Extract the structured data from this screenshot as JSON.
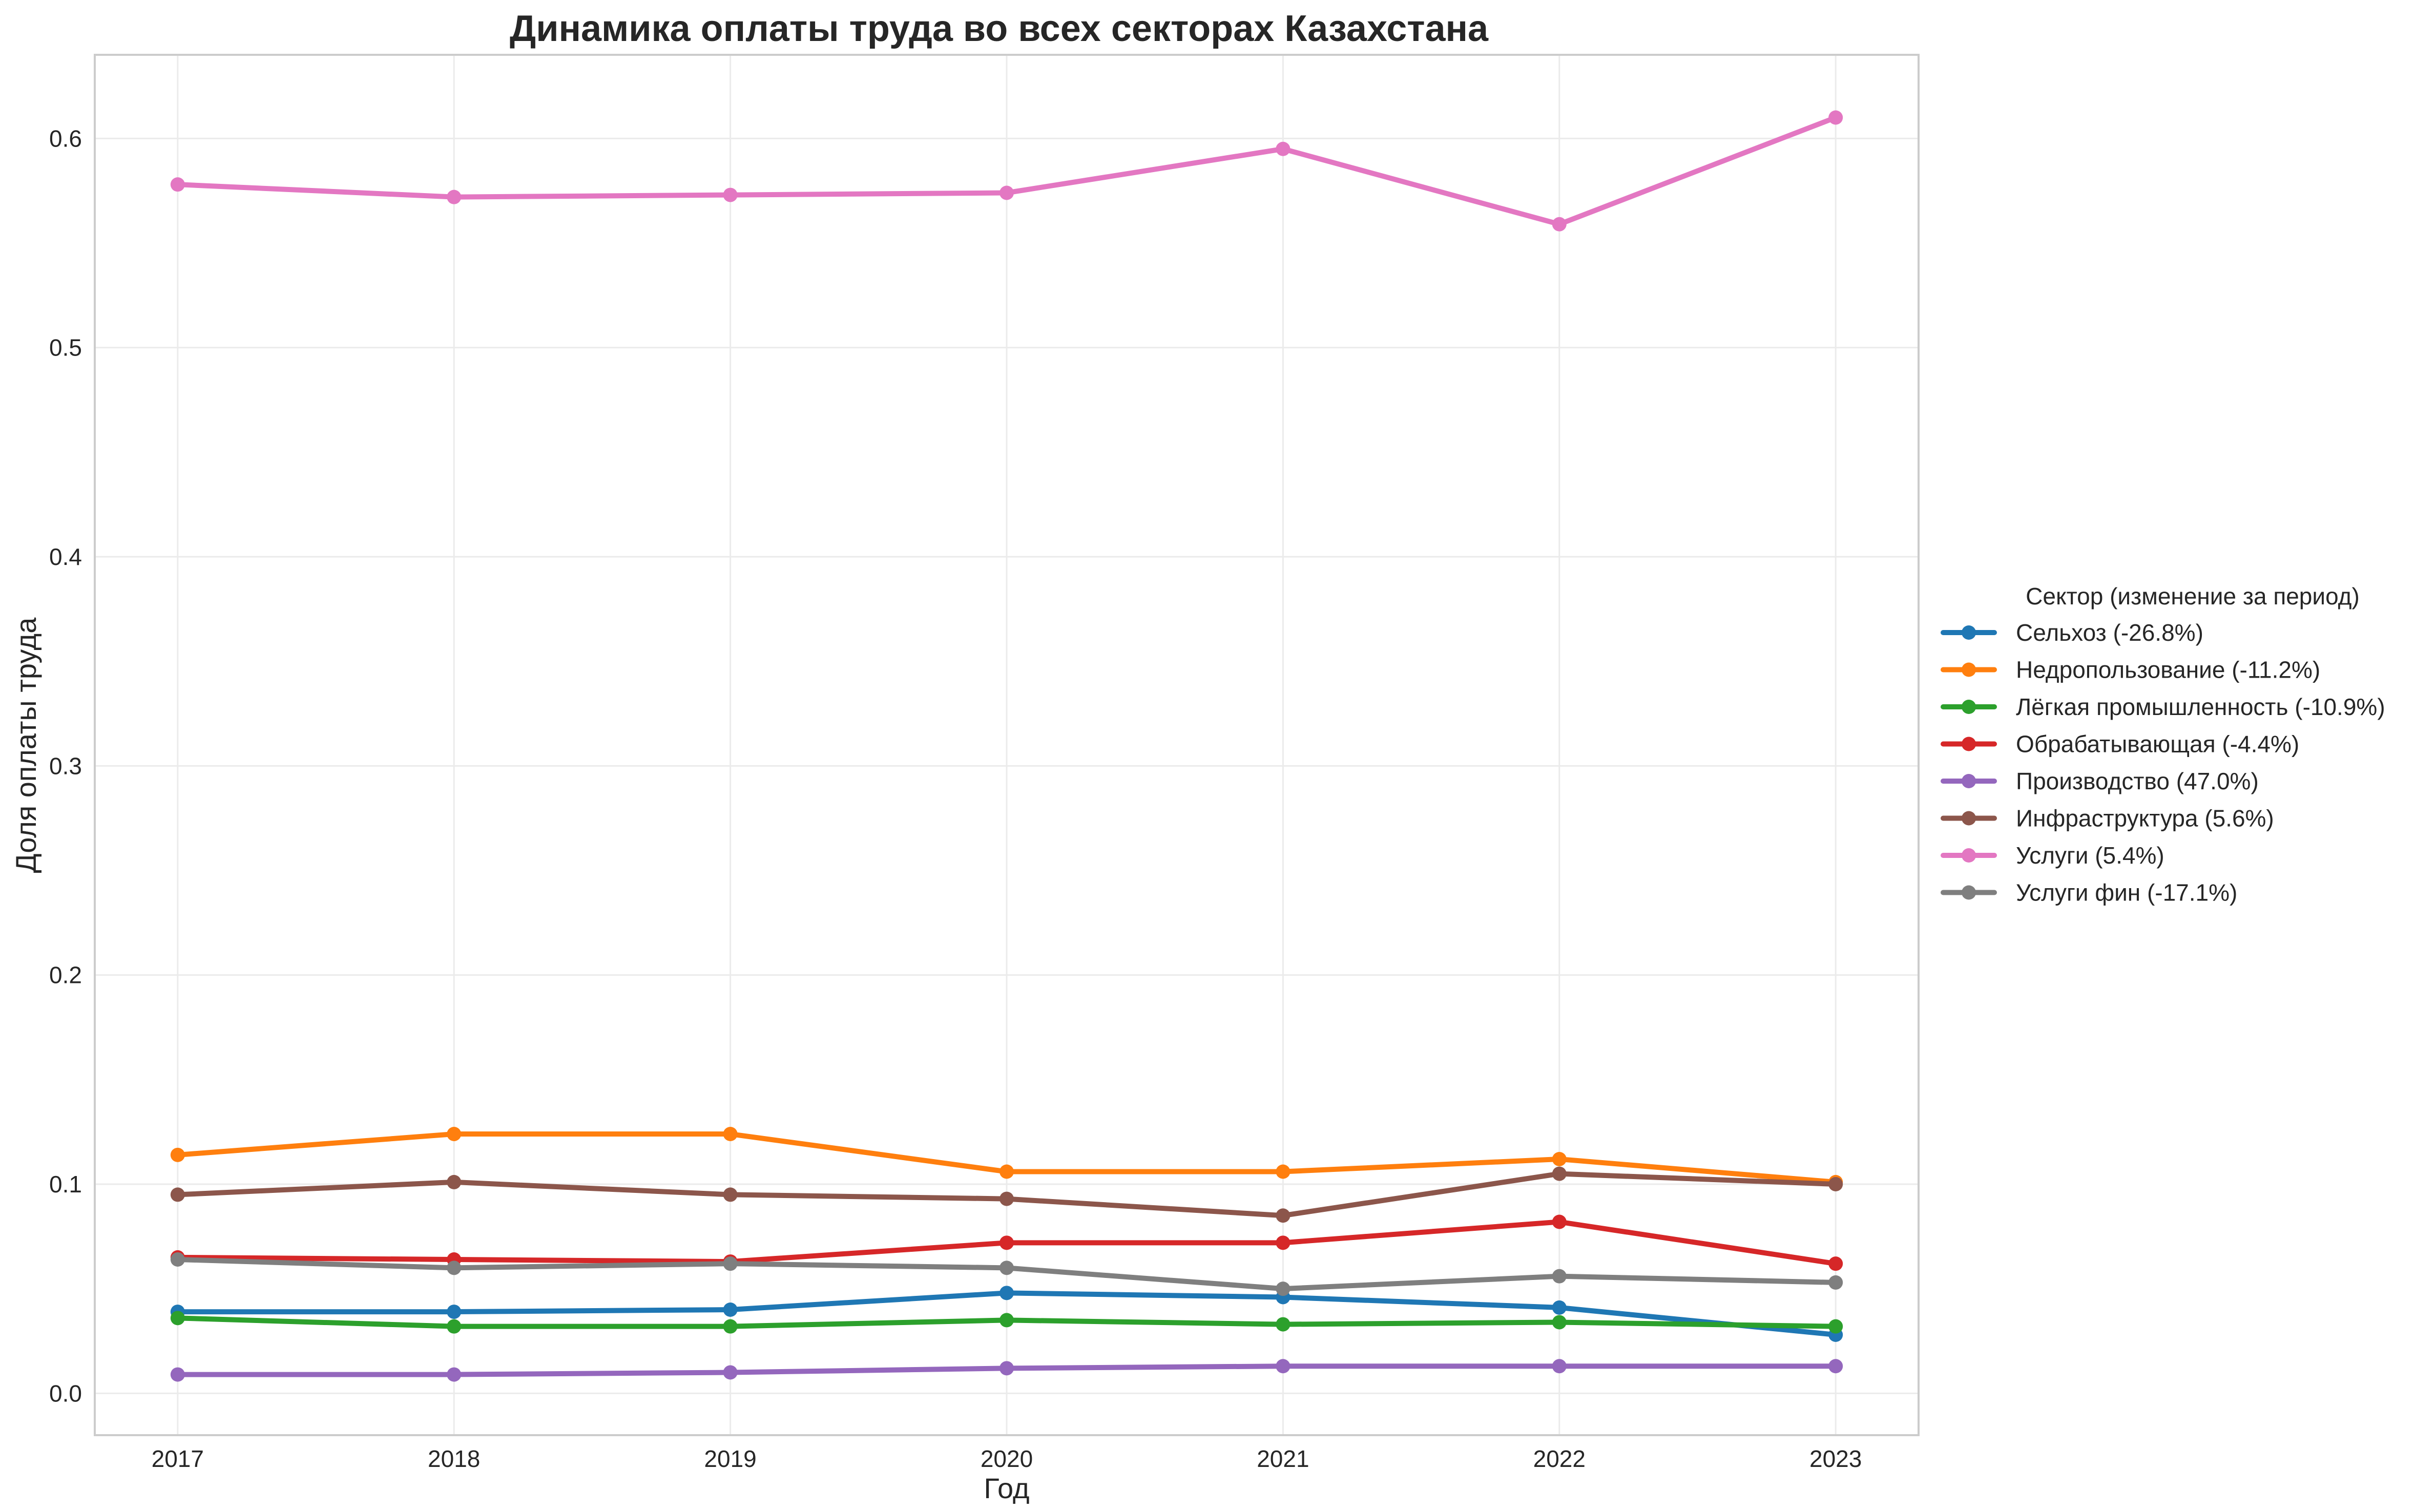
{
  "chart_data": {
    "type": "line",
    "title": "Динамика оплаты труда во всех секторах Казахстана",
    "xlabel": "Год",
    "ylabel": "Доля оплаты труда",
    "x": [
      2017,
      2018,
      2019,
      2020,
      2021,
      2022,
      2023
    ],
    "x_ticks": [
      "2017",
      "2018",
      "2019",
      "2020",
      "2021",
      "2022",
      "2023"
    ],
    "y_ticks": [
      "0.0",
      "0.1",
      "0.2",
      "0.3",
      "0.4",
      "0.5",
      "0.6"
    ],
    "xlim": [
      2016.7,
      2023.3
    ],
    "ylim": [
      -0.02,
      0.64
    ],
    "grid": true,
    "legend_title": "Сектор (изменение за период)",
    "legend_position": "right",
    "series": [
      {
        "name": "Сельхоз (-26.8%)",
        "color": "#1f77b4",
        "values": [
          0.039,
          0.039,
          0.04,
          0.048,
          0.046,
          0.041,
          0.028
        ]
      },
      {
        "name": "Недропользование (-11.2%)",
        "color": "#ff7f0e",
        "values": [
          0.114,
          0.124,
          0.124,
          0.106,
          0.106,
          0.112,
          0.101
        ]
      },
      {
        "name": "Лёгкая промышленность (-10.9%)",
        "color": "#2ca02c",
        "values": [
          0.036,
          0.032,
          0.032,
          0.035,
          0.033,
          0.034,
          0.032
        ]
      },
      {
        "name": "Обрабатывающая (-4.4%)",
        "color": "#d62728",
        "values": [
          0.065,
          0.064,
          0.063,
          0.072,
          0.072,
          0.082,
          0.062
        ]
      },
      {
        "name": "Производство (47.0%)",
        "color": "#9467bd",
        "values": [
          0.009,
          0.009,
          0.01,
          0.012,
          0.013,
          0.013,
          0.013
        ]
      },
      {
        "name": "Инфраструктура (5.6%)",
        "color": "#8c564b",
        "values": [
          0.095,
          0.101,
          0.095,
          0.093,
          0.085,
          0.105,
          0.1
        ]
      },
      {
        "name": "Услуги (5.4%)",
        "color": "#e377c2",
        "values": [
          0.578,
          0.572,
          0.573,
          0.574,
          0.595,
          0.559,
          0.61
        ]
      },
      {
        "name": "Услуги фин (-17.1%)",
        "color": "#7f7f7f",
        "values": [
          0.064,
          0.06,
          0.062,
          0.06,
          0.05,
          0.056,
          0.053
        ]
      }
    ]
  }
}
